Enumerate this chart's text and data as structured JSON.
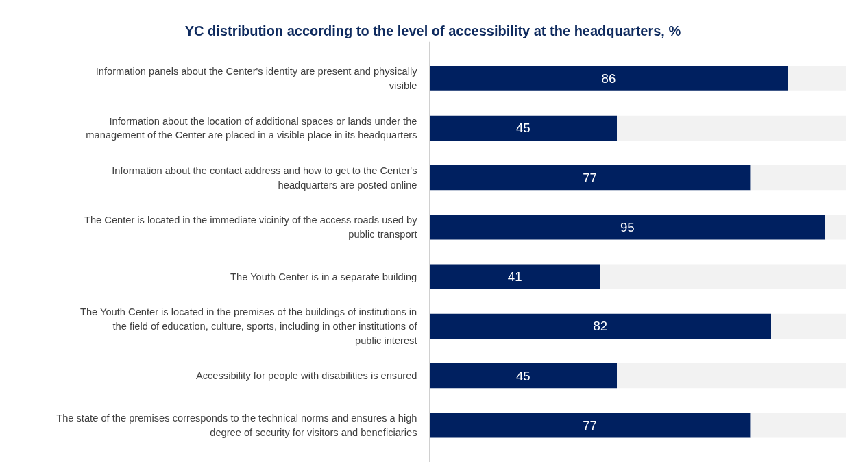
{
  "chart_data": {
    "type": "bar",
    "orientation": "horizontal",
    "stacked": true,
    "title": "YC distribution according to the level of accessibility at the headquarters, %",
    "categories": [
      "Information panels about the Center's identity are present and physically visible",
      "Information about the location of additional spaces or lands under the management of the Center are placed in a visible place in its headquarters",
      "Information about the contact address and how to get to the Center's headquarters are posted online",
      "The Center is located in the immediate vicinity of the access roads used by public transport",
      "The Youth Center is in a separate building",
      "The Youth Center is located in the premises of the buildings of institutions in the field of education, culture, sports, including in other institutions of public interest",
      "Accessibility for people with disabilities is ensured",
      "The state of the premises corresponds to the technical norms and ensures a high degree of security for visitors and beneficiaries"
    ],
    "series": [
      {
        "color": "#002060",
        "values": [
          86,
          45,
          77,
          95,
          41,
          82,
          45,
          77
        ],
        "value_labels": [
          "86",
          "45",
          "77",
          "95",
          "41",
          "82",
          "45",
          "77"
        ]
      },
      {
        "color": "#f2f2f2",
        "values": [
          14,
          55,
          23,
          5,
          59,
          18,
          55,
          23
        ]
      }
    ]
  }
}
